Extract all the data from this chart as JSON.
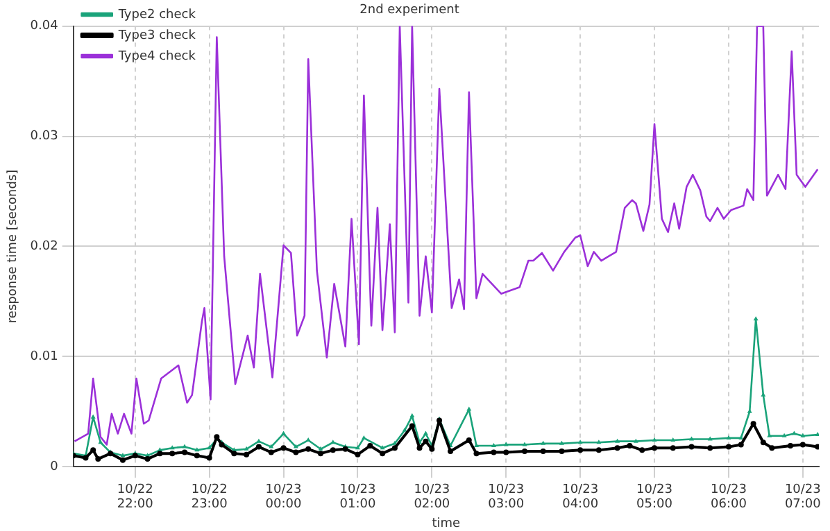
{
  "chart_data": {
    "type": "line",
    "title": "2nd experiment",
    "xlabel": "time",
    "ylabel": "response time [seconds]",
    "xlim": [
      "--10-22T21:10",
      "--10-23T07:13"
    ],
    "xticks": [
      {
        "value": "--10-22T22:00",
        "label": "10/22 22:00"
      },
      {
        "value": "--10-22T23:00",
        "label": "10/22 23:00"
      },
      {
        "value": "--10-23T00:00",
        "label": "10/23 00:00"
      },
      {
        "value": "--10-23T01:00",
        "label": "10/23 01:00"
      },
      {
        "value": "--10-23T02:00",
        "label": "10/23 02:00"
      },
      {
        "value": "--10-23T03:00",
        "label": "10/23 03:00"
      },
      {
        "value": "--10-23T04:00",
        "label": "10/23 04:00"
      },
      {
        "value": "--10-23T05:00",
        "label": "10/23 05:00"
      },
      {
        "value": "--10-23T06:00",
        "label": "10/23 06:00"
      },
      {
        "value": "--10-23T07:00",
        "label": "10/23 07:00"
      }
    ],
    "ylim": [
      0,
      0.04
    ],
    "yticks": [
      0,
      0.01,
      0.02,
      0.03,
      0.04
    ],
    "grid": true,
    "legend": "top left",
    "line_style": "solid",
    "series": [
      {
        "name": "Type2 check",
        "color": "#1aa37a",
        "marker": "triangle",
        "x": [
          "--10-22T21:10",
          "--10-22T21:20",
          "--10-22T21:26",
          "--10-22T21:32",
          "--10-22T21:40",
          "--10-22T21:50",
          "--10-22T22:00",
          "--10-22T22:10",
          "--10-22T22:20",
          "--10-22T22:30",
          "--10-22T22:40",
          "--10-22T22:50",
          "--10-22T23:00",
          "--10-22T23:06",
          "--10-22T23:10",
          "--10-22T23:20",
          "--10-22T23:30",
          "--10-22T23:40",
          "--10-22T23:50",
          "--10-23T00:00",
          "--10-23T00:10",
          "--10-23T00:20",
          "--10-23T00:30",
          "--10-23T00:40",
          "--10-23T00:50",
          "--10-23T01:00",
          "--10-23T01:05",
          "--10-23T01:20",
          "--10-23T01:30",
          "--10-23T01:38",
          "--10-23T01:44",
          "--10-23T01:50",
          "--10-23T01:55",
          "--10-23T02:00",
          "--10-23T02:06",
          "--10-23T02:15",
          "--10-23T02:30",
          "--10-23T02:36",
          "--10-23T02:50",
          "--10-23T03:00",
          "--10-23T03:15",
          "--10-23T03:30",
          "--10-23T03:45",
          "--10-23T04:00",
          "--10-23T04:15",
          "--10-23T04:30",
          "--10-23T04:45",
          "--10-23T05:00",
          "--10-23T05:15",
          "--10-23T05:30",
          "--10-23T05:45",
          "--10-23T06:00",
          "--10-23T06:10",
          "--10-23T06:17",
          "--10-23T06:22",
          "--10-23T06:28",
          "--10-23T06:33",
          "--10-23T06:45",
          "--10-23T06:53",
          "--10-23T07:00",
          "--10-23T07:12"
        ],
        "values": [
          0.0012,
          0.001,
          0.0045,
          0.0022,
          0.0013,
          0.001,
          0.0012,
          0.001,
          0.0015,
          0.0017,
          0.0018,
          0.0015,
          0.0017,
          0.0025,
          0.0022,
          0.0015,
          0.0016,
          0.0023,
          0.0018,
          0.003,
          0.0018,
          0.0024,
          0.0016,
          0.0022,
          0.0018,
          0.0017,
          0.0026,
          0.0017,
          0.0021,
          0.0033,
          0.0046,
          0.0022,
          0.003,
          0.0019,
          0.0043,
          0.0019,
          0.0052,
          0.0019,
          0.0019,
          0.002,
          0.002,
          0.0021,
          0.0021,
          0.0022,
          0.0022,
          0.0023,
          0.0023,
          0.0024,
          0.0024,
          0.0025,
          0.0025,
          0.0026,
          0.0026,
          0.005,
          0.0134,
          0.0065,
          0.0028,
          0.0028,
          0.003,
          0.0028,
          0.0029
        ]
      },
      {
        "name": "Type3 check",
        "color": "#000000",
        "marker": "circle",
        "x": [
          "--10-22T21:10",
          "--10-22T21:20",
          "--10-22T21:26",
          "--10-22T21:30",
          "--10-22T21:40",
          "--10-22T21:50",
          "--10-22T22:00",
          "--10-22T22:10",
          "--10-22T22:20",
          "--10-22T22:30",
          "--10-22T22:40",
          "--10-22T22:50",
          "--10-22T23:00",
          "--10-22T23:06",
          "--10-22T23:10",
          "--10-22T23:20",
          "--10-22T23:30",
          "--10-22T23:40",
          "--10-22T23:50",
          "--10-23T00:00",
          "--10-23T00:10",
          "--10-23T00:20",
          "--10-23T00:30",
          "--10-23T00:40",
          "--10-23T00:50",
          "--10-23T01:00",
          "--10-23T01:10",
          "--10-23T01:20",
          "--10-23T01:30",
          "--10-23T01:44",
          "--10-23T01:50",
          "--10-23T01:55",
          "--10-23T02:00",
          "--10-23T02:06",
          "--10-23T02:15",
          "--10-23T02:30",
          "--10-23T02:36",
          "--10-23T02:50",
          "--10-23T03:00",
          "--10-23T03:15",
          "--10-23T03:30",
          "--10-23T03:45",
          "--10-23T04:00",
          "--10-23T04:15",
          "--10-23T04:30",
          "--10-23T04:40",
          "--10-23T04:50",
          "--10-23T05:00",
          "--10-23T05:15",
          "--10-23T05:30",
          "--10-23T05:45",
          "--10-23T06:00",
          "--10-23T06:10",
          "--10-23T06:20",
          "--10-23T06:28",
          "--10-23T06:35",
          "--10-23T06:50",
          "--10-23T07:00",
          "--10-23T07:12"
        ],
        "values": [
          0.001,
          0.0008,
          0.0015,
          0.0007,
          0.0012,
          0.0006,
          0.001,
          0.0007,
          0.0012,
          0.0012,
          0.0013,
          0.001,
          0.0008,
          0.0027,
          0.002,
          0.0012,
          0.0011,
          0.0018,
          0.0013,
          0.0017,
          0.0013,
          0.0016,
          0.0012,
          0.0015,
          0.0016,
          0.0011,
          0.0019,
          0.0012,
          0.0017,
          0.0037,
          0.0017,
          0.0023,
          0.0016,
          0.0042,
          0.0014,
          0.0024,
          0.0012,
          0.0013,
          0.0013,
          0.0014,
          0.0014,
          0.0014,
          0.0015,
          0.0015,
          0.0017,
          0.0019,
          0.0015,
          0.0017,
          0.0017,
          0.0018,
          0.0017,
          0.0018,
          0.002,
          0.0039,
          0.0022,
          0.0017,
          0.0019,
          0.002,
          0.0018
        ]
      },
      {
        "name": "Type4 check",
        "color": "#9b30d9",
        "marker": "none",
        "x": [
          "--10-22T21:11",
          "--10-22T21:22",
          "--10-22T21:26",
          "--10-22T21:32",
          "--10-22T21:37",
          "--10-22T21:41",
          "--10-22T21:46",
          "--10-22T21:51",
          "--10-22T21:57",
          "--10-22T22:01",
          "--10-22T22:07",
          "--10-22T22:11",
          "--10-22T22:21",
          "--10-22T22:35",
          "--10-22T22:42",
          "--10-22T22:46",
          "--10-22T22:54",
          "--10-22T22:56",
          "--10-22T23:01",
          "--10-22T23:06",
          "--10-22T23:12",
          "--10-22T23:21",
          "--10-22T23:31",
          "--10-22T23:36",
          "--10-22T23:41",
          "--10-22T23:51",
          "--10-23T00:00",
          "--10-23T00:06",
          "--10-23T00:11",
          "--10-23T00:17",
          "--10-23T00:20",
          "--10-23T00:27",
          "--10-23T00:35",
          "--10-23T00:41",
          "--10-23T00:50",
          "--10-23T00:55",
          "--10-23T01:01",
          "--10-23T01:05",
          "--10-23T01:11",
          "--10-23T01:16",
          "--10-23T01:20",
          "--10-23T01:26",
          "--10-23T01:30",
          "--10-23T01:34",
          "--10-23T01:41",
          "--10-23T01:44",
          "--10-23T01:50",
          "--10-23T01:55",
          "--10-23T02:00",
          "--10-23T02:06",
          "--10-23T02:16",
          "--10-23T02:22",
          "--10-23T02:26",
          "--10-23T02:30",
          "--10-23T02:36",
          "--10-23T02:41",
          "--10-23T02:56",
          "--10-23T03:11",
          "--10-23T03:18",
          "--10-23T03:22",
          "--10-23T03:29",
          "--10-23T03:38",
          "--10-23T03:47",
          "--10-23T03:56",
          "--10-23T04:00",
          "--10-23T04:06",
          "--10-23T04:11",
          "--10-23T04:17",
          "--10-23T04:23",
          "--10-23T04:29",
          "--10-23T04:36",
          "--10-23T04:42",
          "--10-23T04:45",
          "--10-23T04:51",
          "--10-23T04:56",
          "--10-23T05:00",
          "--10-23T05:06",
          "--10-23T05:11",
          "--10-23T05:16",
          "--10-23T05:20",
          "--10-23T05:26",
          "--10-23T05:31",
          "--10-23T05:37",
          "--10-23T05:42",
          "--10-23T05:45",
          "--10-23T05:51",
          "--10-23T05:56",
          "--10-23T06:02",
          "--10-23T06:12",
          "--10-23T06:15",
          "--10-23T06:20",
          "--10-23T06:23",
          "--10-23T06:28",
          "--10-23T06:31",
          "--10-23T06:40",
          "--10-23T06:46",
          "--10-23T06:51",
          "--10-23T06:55",
          "--10-23T07:02",
          "--10-23T07:12"
        ],
        "values": [
          0.0023,
          0.003,
          0.008,
          0.0027,
          0.002,
          0.0048,
          0.003,
          0.0048,
          0.003,
          0.008,
          0.0039,
          0.0042,
          0.008,
          0.0092,
          0.0058,
          0.0065,
          0.0132,
          0.0144,
          0.0061,
          0.039,
          0.0191,
          0.0075,
          0.0119,
          0.009,
          0.0175,
          0.0081,
          0.0201,
          0.0194,
          0.0119,
          0.0137,
          0.037,
          0.0178,
          0.0099,
          0.0166,
          0.0109,
          0.0225,
          0.0111,
          0.0337,
          0.0128,
          0.0235,
          0.0124,
          0.022,
          0.0122,
          0.04,
          0.0149,
          0.04,
          0.0137,
          0.0191,
          0.014,
          0.0343,
          0.0144,
          0.017,
          0.0143,
          0.034,
          0.0153,
          0.0175,
          0.0157,
          0.0163,
          0.0187,
          0.0187,
          0.0194,
          0.0178,
          0.0195,
          0.0208,
          0.021,
          0.0182,
          0.0195,
          0.0187,
          0.0191,
          0.0195,
          0.0235,
          0.0242,
          0.0239,
          0.0214,
          0.0238,
          0.0311,
          0.0225,
          0.0213,
          0.0239,
          0.0216,
          0.0254,
          0.0265,
          0.0251,
          0.0227,
          0.0223,
          0.0235,
          0.0225,
          0.0233,
          0.0237,
          0.0252,
          0.0242,
          0.04,
          0.04,
          0.0246,
          0.0265,
          0.0252,
          0.0377,
          0.0265,
          0.0254,
          0.027
        ]
      }
    ]
  }
}
